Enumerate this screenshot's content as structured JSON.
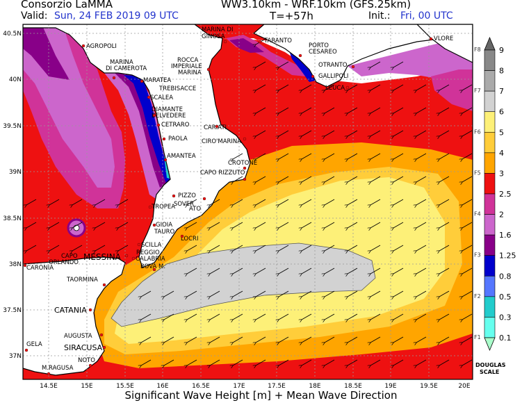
{
  "header": {
    "org": "Consorzio LaMMA",
    "model": "WW3.10km - WRF.10km (GFS.25km)",
    "valid_label": "Valid:",
    "valid_value": "Sun, 24 FEB 2019  09 UTC",
    "step": "T=+57h",
    "init_label": "Init.:",
    "init_value": "Fri, 00 UTC"
  },
  "footer": "Significant Wave Height [m] + Mean Wave Direction",
  "map": {
    "lat_ticks": [
      "40.5N",
      "40N",
      "39.5N",
      "39N",
      "38.5N",
      "38N",
      "37.5N",
      "37N"
    ],
    "lon_ticks": [
      "14.5E",
      "15E",
      "15.5E",
      "16E",
      "16.5E",
      "17E",
      "17.5E",
      "18E",
      "18.5E",
      "19E",
      "19.5E",
      "20E"
    ],
    "places": [
      "AGROPOLI",
      "MARINA",
      "DI CAMEROTA",
      "MARATEA",
      "SCALEA",
      "DIAMANTE",
      "BELVEDERE",
      "CETRARO",
      "PAOLA",
      "AMANTEA",
      "PIZZO",
      "SOVER",
      "ATO",
      "TROPEA",
      "GIOIA",
      "TAURO",
      "SCILLA",
      "REGGIO",
      "CALABRIA",
      "BOVA M.",
      "LOCRI",
      "CAPO RIZZUTO",
      "CROTONE",
      "CIRO'MARINA",
      "CARIATI",
      "TREBISACCE",
      "ROCCA",
      "IMPERIALE",
      "MARINA",
      "MARINA DI",
      "GINOSA",
      "TARANTO",
      "PORTO",
      "CESAREO",
      "OTRANTO",
      "GALLIPOLI",
      "LEUCA",
      "VLORE",
      "MESSINA",
      "CAPO",
      "ORLANDO",
      "CARONIA",
      "TAORMINA",
      "CATANIA",
      "AUGUSTA",
      "SIRACUSA",
      "NOTO",
      "M.RAGUSA",
      "GELA"
    ],
    "wave_direction": "from east-northeast"
  },
  "colorbar": {
    "levels": [
      "9",
      "8",
      "7",
      "6",
      "5",
      "4",
      "3",
      "2.5",
      "2",
      "1.6",
      "1.25",
      "0.8",
      "0.5",
      "0.3",
      "0.1"
    ],
    "colors": [
      "#666666",
      "#888888",
      "#aaaaaa",
      "#d2d2d2",
      "#fdf078",
      "#ffcd3a",
      "#ffa500",
      "#ee1111",
      "#d03399",
      "#cc66cc",
      "#880088",
      "#0000cc",
      "#5577ff",
      "#22cccc",
      "#66ffee",
      "#aaffcc"
    ],
    "force_labels": [
      "F8",
      "F7",
      "F6",
      "F5",
      "F4",
      "F3",
      "F2",
      "F1"
    ],
    "scale_title_1": "DOUGLAS",
    "scale_title_2": "SCALE"
  }
}
